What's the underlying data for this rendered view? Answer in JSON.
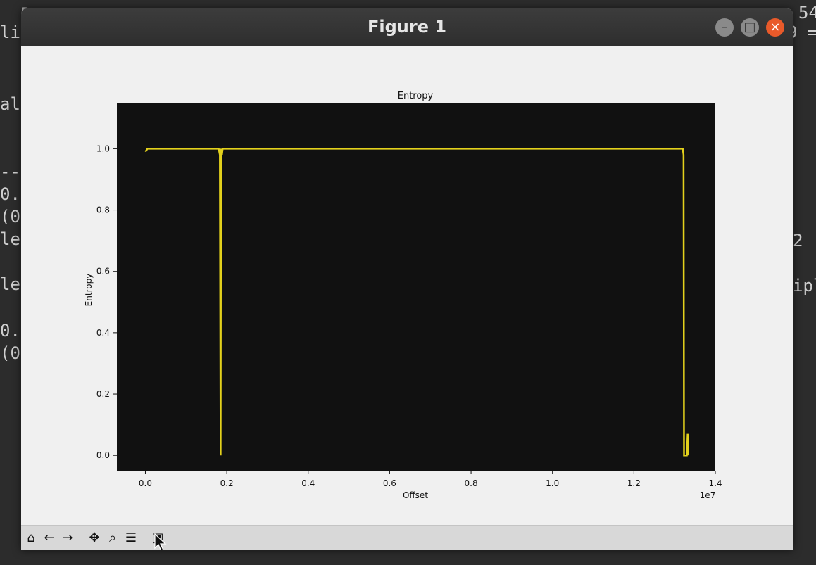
{
  "terminal_lines": [
    "  P",
    "li",
    "al",
    "--",
    "0.",
    "(0",
    "le",
    "le",
    "0.",
    "(0"
  ],
  "terminal_right": [
    "54",
    "9 =",
    "2",
    "ipl"
  ],
  "window": {
    "title": "Figure 1"
  },
  "window_buttons": {
    "minimize": "–",
    "maximize": "□",
    "close": "×"
  },
  "toolbar": {
    "icons": [
      "home-icon",
      "back-icon",
      "forward-icon",
      "pan-icon",
      "zoom-icon",
      "configure-subplots-icon",
      "save-icon"
    ]
  },
  "chart_data": {
    "type": "line",
    "title": "Entropy",
    "xlabel": "Offset",
    "ylabel": "Entropy",
    "x_offset_label": "1e7",
    "xlim": [
      -0.07,
      1.4
    ],
    "ylim": [
      -0.05,
      1.15
    ],
    "xticks": [
      0.0,
      0.2,
      0.4,
      0.6,
      0.8,
      1.0,
      1.2,
      1.4
    ],
    "xtick_labels": [
      "0.0",
      "0.2",
      "0.4",
      "0.6",
      "0.8",
      "1.0",
      "1.2",
      "1.4"
    ],
    "yticks": [
      0.0,
      0.2,
      0.4,
      0.6,
      0.8,
      1.0
    ],
    "ytick_labels": [
      "0.0",
      "0.2",
      "0.4",
      "0.6",
      "0.8",
      "1.0"
    ],
    "background": "#111111",
    "line_color": "#e3d11c",
    "series": [
      {
        "x": [
          0.0,
          0.005,
          0.18,
          0.183,
          0.185,
          0.186,
          0.188,
          0.19,
          1.32,
          1.322,
          1.323,
          1.33,
          1.332,
          1.333
        ],
        "y": [
          0.99,
          1.0,
          1.0,
          0.98,
          0.0,
          1.0,
          0.98,
          1.0,
          1.0,
          0.98,
          0.0,
          0.0,
          0.07,
          0.0
        ]
      }
    ]
  }
}
